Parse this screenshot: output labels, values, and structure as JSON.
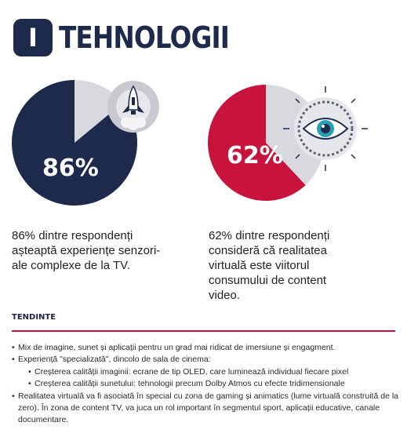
{
  "header": {
    "badge": "I",
    "title": "TEHNOLOGII"
  },
  "stats": [
    {
      "percent_label": "86%",
      "value": 86,
      "color": "#1e2a4c",
      "remainder_color": "#d8d9de",
      "icon": "rocket-icon",
      "description": [
        "86% dintre respondenți",
        "așteaptă experiențe senzori-",
        "ale complexe de la TV."
      ]
    },
    {
      "percent_label": "62%",
      "value": 62,
      "color": "#c8143c",
      "remainder_color": "#d8d9de",
      "icon": "eye-icon",
      "description": [
        "62% dintre respondenți",
        "consideră că realitatea",
        "virtuală este viitorul",
        "consumului de content",
        "video."
      ]
    }
  ],
  "trends": {
    "title": "TENDINTE",
    "items": [
      "Mix de imagine, sunet și aplicații pentru un grad mai ridicat de imersiune și engagment.",
      "Experiență \"specializată\", dincolo de sala de cinema:",
      "Creșterea calității imaginii: ecrane de tip OLED, care luminează individual fiecare pixel",
      "Creșterea calității sunetului: tehnologii precum Dolby Atmos cu efecte tridimensionale",
      "Realitatea virtuală va fi asociată în special cu zona de gaming și animatics (lume virtuală construită de la zero). În zona de content TV, va juca un rol important în segmentul sport, aplicații educative, canale documentare."
    ]
  }
}
